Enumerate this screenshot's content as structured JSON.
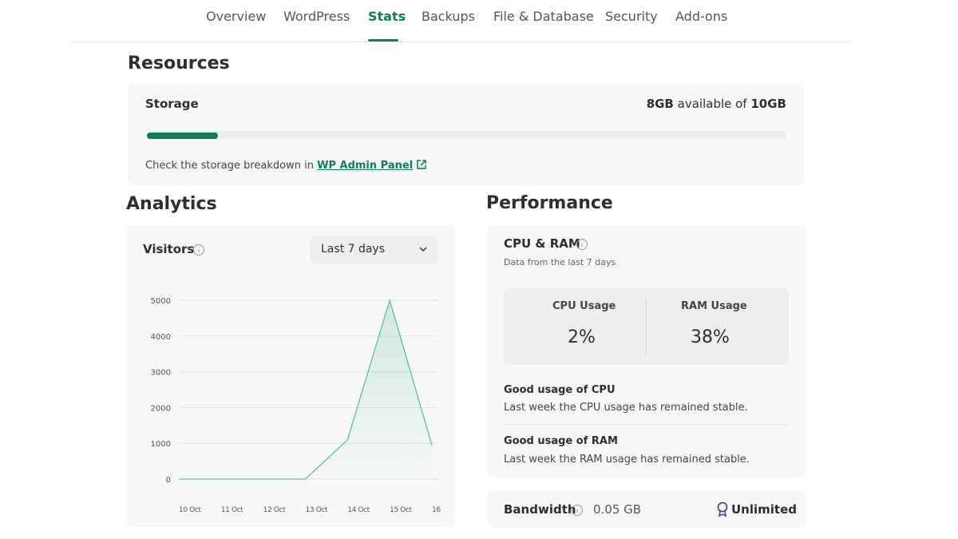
{
  "nav": {
    "tabs": [
      "Overview",
      "WordPress",
      "Stats",
      "Backups",
      "File & Database",
      "Security",
      "Add-ons"
    ]
  },
  "resources": {
    "title": "Resources",
    "storage": {
      "label": "Storage",
      "available": "8GB",
      "available_text": "available of",
      "total": "10GB",
      "note": "Check the storage breakdown in",
      "link": "WP Admin Panel"
    }
  },
  "analytics": {
    "title": "Analytics",
    "metric": "Visitors",
    "range": "Last 7 days",
    "chart": {
      "type": "line",
      "x": [
        "10 Oct",
        "11 Oct",
        "12 Oct",
        "13 Oct",
        "14 Oct",
        "15 Oct",
        "16"
      ],
      "values": [
        0,
        0,
        0,
        0,
        1100,
        5000,
        950
      ],
      "ylim": [
        0,
        5000
      ],
      "yticks": [
        0,
        1000,
        2000,
        3000,
        4000,
        5000
      ],
      "color": "#5fbf98",
      "grid": true
    }
  },
  "performance": {
    "title": "Performance",
    "cpu_ram": {
      "title": "CPU & RAM",
      "subtitle": "Data from the last 7 days",
      "cpu_label": "CPU Usage",
      "cpu_value": "2%",
      "ram_label": "RAM Usage",
      "ram_value": "38%",
      "notes": [
        {
          "title": "Good usage of CPU",
          "text": "Last week the CPU usage has remained stable."
        },
        {
          "title": "Good usage of RAM",
          "text": "Last week the RAM usage has remained stable."
        }
      ]
    },
    "bandwidth": {
      "label": "Bandwidth",
      "value": "0.05 GB",
      "limit": "Unlimited"
    }
  }
}
